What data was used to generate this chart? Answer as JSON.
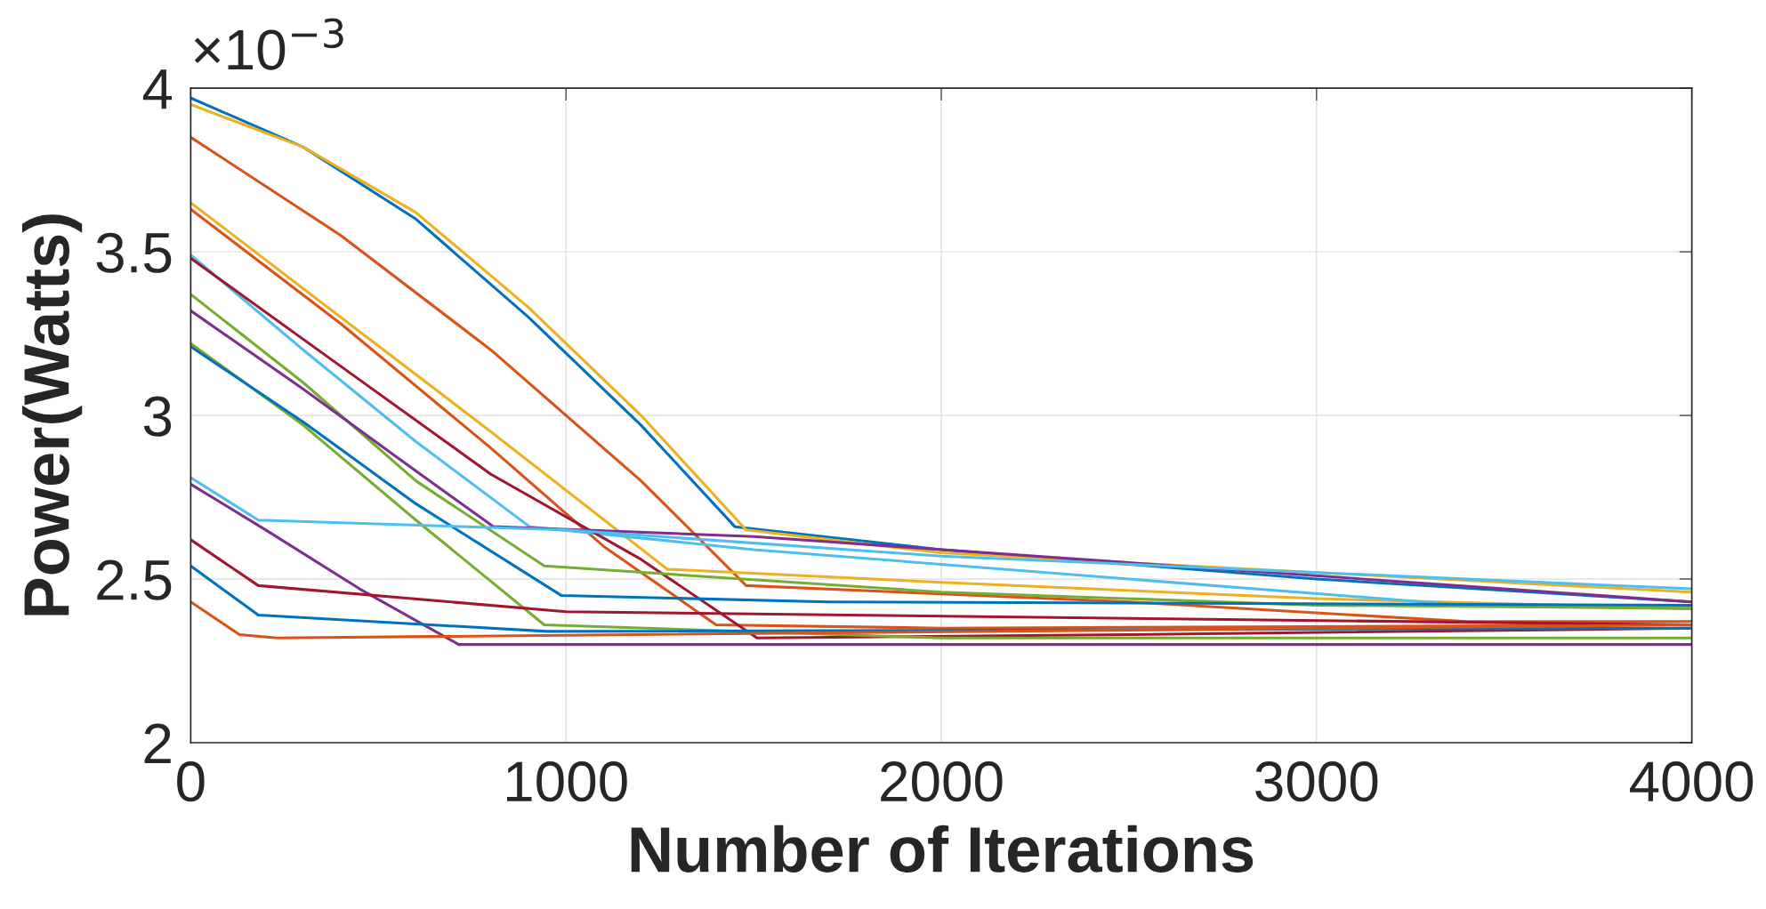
{
  "chart_data": {
    "type": "line",
    "xlabel": "Number of Iterations",
    "ylabel": "Power(Watts)",
    "annotations": [
      "×10$^{−3}$"
    ],
    "xlim": [
      0,
      4000
    ],
    "xticks": [
      0,
      1000,
      2000,
      3000,
      4000
    ],
    "ylim": [
      2,
      4
    ],
    "yticks": [
      2,
      2.5,
      3,
      3.5,
      4
    ],
    "grid": true,
    "line_style": "solid",
    "series": [
      {
        "color": "#0072bd",
        "x": [
          0,
          300,
          600,
          900,
          1200,
          1450,
          2000,
          3000,
          4000
        ],
        "values": [
          3.97,
          3.82,
          3.6,
          3.3,
          2.97,
          2.66,
          2.59,
          2.5,
          2.43
        ]
      },
      {
        "color": "#edb120",
        "x": [
          0,
          300,
          600,
          900,
          1200,
          1480,
          2000,
          3000,
          4000
        ],
        "values": [
          3.95,
          3.82,
          3.62,
          3.33,
          3.0,
          2.65,
          2.58,
          2.52,
          2.46
        ]
      },
      {
        "color": "#d95319",
        "x": [
          0,
          400,
          800,
          1200,
          1480,
          2500,
          3400,
          4000
        ],
        "values": [
          3.85,
          3.55,
          3.2,
          2.8,
          2.48,
          2.43,
          2.37,
          2.37
        ]
      },
      {
        "color": "#edb120",
        "x": [
          0,
          400,
          800,
          1270,
          2000,
          3000,
          4000
        ],
        "values": [
          3.65,
          3.3,
          2.95,
          2.53,
          2.49,
          2.44,
          2.41
        ]
      },
      {
        "color": "#d95319",
        "x": [
          0,
          400,
          800,
          1100,
          1400,
          2000,
          4000
        ],
        "values": [
          3.63,
          3.28,
          2.9,
          2.6,
          2.36,
          2.35,
          2.36
        ]
      },
      {
        "color": "#4dbeee",
        "x": [
          0,
          300,
          600,
          903,
          1500,
          2500,
          3400,
          4000
        ],
        "values": [
          3.49,
          3.2,
          2.92,
          2.66,
          2.59,
          2.5,
          2.42,
          2.41
        ]
      },
      {
        "color": "#a2142f",
        "x": [
          0,
          400,
          800,
          1200,
          1509,
          2500,
          4000
        ],
        "values": [
          3.48,
          3.15,
          2.82,
          2.56,
          2.32,
          2.33,
          2.35
        ]
      },
      {
        "color": "#77ac30",
        "x": [
          0,
          300,
          600,
          942,
          2000,
          3000,
          4000
        ],
        "values": [
          3.37,
          3.1,
          2.8,
          2.54,
          2.46,
          2.42,
          2.41
        ]
      },
      {
        "color": "#7e2f8e",
        "x": [
          0,
          300,
          600,
          807,
          1500,
          2500,
          3500,
          4000
        ],
        "values": [
          3.32,
          3.08,
          2.83,
          2.66,
          2.63,
          2.55,
          2.47,
          2.43
        ]
      },
      {
        "color": "#77ac30",
        "x": [
          0,
          300,
          600,
          942,
          2000,
          4000
        ],
        "values": [
          3.22,
          2.97,
          2.68,
          2.36,
          2.32,
          2.32
        ]
      },
      {
        "color": "#0072bd",
        "x": [
          0,
          300,
          600,
          987,
          1700,
          4000
        ],
        "values": [
          3.21,
          2.98,
          2.73,
          2.45,
          2.43,
          2.42
        ]
      },
      {
        "color": "#4dbeee",
        "x": [
          0,
          180,
          1000,
          2000,
          3000,
          4000
        ],
        "values": [
          2.81,
          2.68,
          2.65,
          2.57,
          2.52,
          2.47
        ]
      },
      {
        "color": "#7e2f8e",
        "x": [
          0,
          200,
          450,
          714,
          4000
        ],
        "values": [
          2.79,
          2.65,
          2.47,
          2.3,
          2.3
        ]
      },
      {
        "color": "#a2142f",
        "x": [
          0,
          180,
          1000,
          4000
        ],
        "values": [
          2.62,
          2.48,
          2.4,
          2.36
        ]
      },
      {
        "color": "#0072bd",
        "x": [
          0,
          180,
          950,
          4000
        ],
        "values": [
          2.54,
          2.39,
          2.34,
          2.35
        ]
      },
      {
        "color": "#d95319",
        "x": [
          0,
          130,
          230,
          4000
        ],
        "values": [
          2.43,
          2.33,
          2.32,
          2.36
        ]
      }
    ]
  }
}
